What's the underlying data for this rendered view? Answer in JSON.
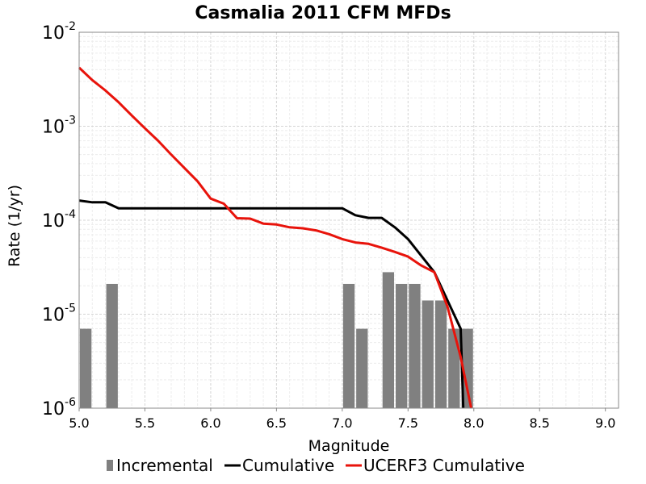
{
  "chart_data": {
    "type": "bar",
    "title": "Casmalia 2011 CFM MFDs",
    "xlabel": "Magnitude",
    "ylabel": "Rate (1/yr)",
    "xlim": [
      5.0,
      9.1
    ],
    "ylim": [
      1e-06,
      0.01
    ],
    "y_scale": "log",
    "grid": true,
    "legend_position": "bottom",
    "x_ticks": [
      "5.0",
      "5.5",
      "6.0",
      "6.5",
      "7.0",
      "7.5",
      "8.0",
      "8.5",
      "9.0"
    ],
    "y_ticks": [
      {
        "base": "10",
        "exp": "-2",
        "value": 0.01
      },
      {
        "base": "10",
        "exp": "-3",
        "value": 0.001
      },
      {
        "base": "10",
        "exp": "-4",
        "value": 0.0001
      },
      {
        "base": "10",
        "exp": "-5",
        "value": 1e-05
      },
      {
        "base": "10",
        "exp": "-6",
        "value": 1e-06
      }
    ],
    "series": [
      {
        "name": "Incremental",
        "type": "bar",
        "color": "#808080",
        "x": [
          5.05,
          5.25,
          7.05,
          7.15,
          7.35,
          7.45,
          7.55,
          7.65,
          7.75,
          7.85,
          7.95
        ],
        "y": [
          7e-06,
          2.1e-05,
          2.1e-05,
          7e-06,
          2.8e-05,
          2.1e-05,
          2.1e-05,
          1.4e-05,
          1.4e-05,
          7e-06,
          7e-06
        ]
      },
      {
        "name": "Cumulative",
        "type": "line",
        "color": "#000000",
        "x": [
          5.0,
          5.1,
          5.2,
          5.3,
          5.4,
          5.5,
          6.0,
          6.5,
          7.0,
          7.1,
          7.2,
          7.3,
          7.4,
          7.5,
          7.6,
          7.7,
          7.8,
          7.9,
          7.92
        ],
        "y": [
          0.000162,
          0.000155,
          0.000155,
          0.000134,
          0.000134,
          0.000134,
          0.000134,
          0.000134,
          0.000134,
          0.000113,
          0.000106,
          0.000106,
          8.4e-05,
          6.3e-05,
          4.2e-05,
          2.8e-05,
          1.4e-05,
          7e-06,
          1e-06
        ]
      },
      {
        "name": "UCERF3 Cumulative",
        "type": "line",
        "color": "#e8130b",
        "x": [
          5.0,
          5.1,
          5.2,
          5.3,
          5.4,
          5.5,
          5.6,
          5.7,
          5.8,
          5.9,
          6.0,
          6.1,
          6.2,
          6.3,
          6.4,
          6.5,
          6.6,
          6.7,
          6.8,
          6.9,
          7.0,
          7.1,
          7.2,
          7.3,
          7.4,
          7.5,
          7.6,
          7.7,
          7.8,
          7.9,
          7.98
        ],
        "y": [
          0.0042,
          0.0031,
          0.0024,
          0.0018,
          0.0013,
          0.00095,
          0.0007,
          0.0005,
          0.00036,
          0.00026,
          0.00017,
          0.00015,
          0.000105,
          0.000104,
          9.2e-05,
          9e-05,
          8.4e-05,
          8.2e-05,
          7.8e-05,
          7.1e-05,
          6.3e-05,
          5.8e-05,
          5.6e-05,
          5.1e-05,
          4.6e-05,
          4.1e-05,
          3.3e-05,
          2.8e-05,
          1.2e-05,
          3.5e-06,
          1e-06
        ]
      }
    ]
  }
}
